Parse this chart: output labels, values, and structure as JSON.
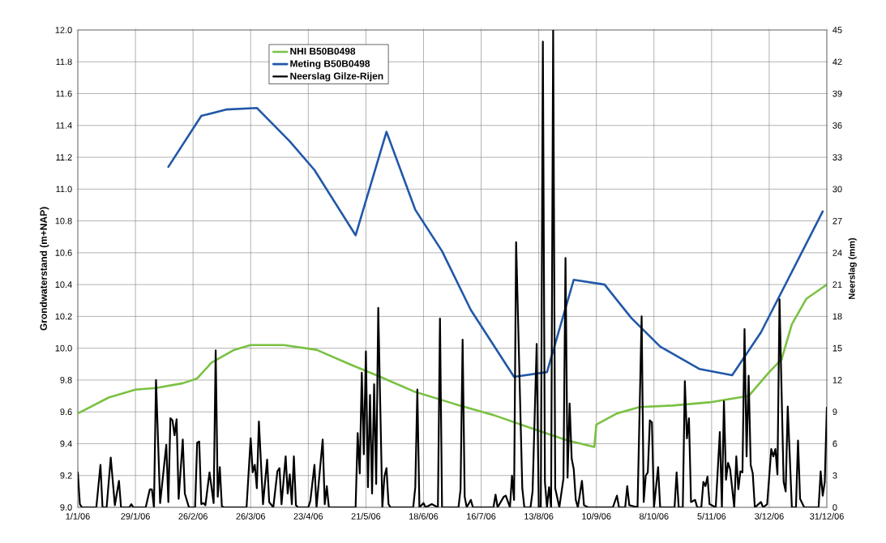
{
  "chart_data": {
    "type": "line",
    "ylabel": "Grondwaterstand (m+NAP)",
    "y2label": "Neerslag (mm)",
    "xlim": [
      "2006-01-01",
      "2006-12-31"
    ],
    "xticks": [
      {
        "value": "2006-01-01",
        "label": "1/1/06"
      },
      {
        "value": "2006-01-29",
        "label": "29/1/06"
      },
      {
        "value": "2006-02-26",
        "label": "26/2/06"
      },
      {
        "value": "2006-03-26",
        "label": "26/3/06"
      },
      {
        "value": "2006-04-23",
        "label": "23/4/06"
      },
      {
        "value": "2006-05-21",
        "label": "21/5/06"
      },
      {
        "value": "2006-06-18",
        "label": "18/6/06"
      },
      {
        "value": "2006-07-16",
        "label": "16/7/06"
      },
      {
        "value": "2006-08-13",
        "label": "13/8/06"
      },
      {
        "value": "2006-09-10",
        "label": "10/9/06"
      },
      {
        "value": "2006-10-08",
        "label": "8/10/06"
      },
      {
        "value": "2006-11-05",
        "label": "5/11/06"
      },
      {
        "value": "2006-12-03",
        "label": "3/12/06"
      },
      {
        "value": "2006-12-31",
        "label": "31/12/06"
      }
    ],
    "ylim": [
      9.0,
      12.0
    ],
    "yticks": [
      {
        "value": 9.0,
        "label": "9.0"
      },
      9.2,
      9.4,
      9.6,
      9.8,
      {
        "value": 10.0,
        "label": "10.0"
      },
      10.2,
      10.4,
      10.6,
      10.8,
      {
        "value": 11.0,
        "label": "11.0"
      },
      11.2,
      11.4,
      11.6,
      11.8,
      {
        "value": 12.0,
        "label": "12.0"
      }
    ],
    "y2lim": [
      0,
      45
    ],
    "y2ticks": [
      0,
      3,
      6,
      9,
      12,
      15,
      18,
      21,
      24,
      27,
      30,
      33,
      36,
      39,
      42,
      45
    ],
    "grid": true,
    "legend": "top",
    "series": [
      {
        "name": "NHI B50B0498",
        "color": "#7ac143",
        "x": [
          "2006-01-01",
          "2006-01-16",
          "2006-01-29",
          "2006-02-08",
          "2006-02-21",
          "2006-02-28",
          "2006-03-07",
          "2006-03-18",
          "2006-03-26",
          "2006-04-11",
          "2006-04-27",
          "2006-05-13",
          "2006-05-28",
          "2006-06-13",
          "2006-07-03",
          "2006-07-22",
          "2006-08-11",
          "2006-08-27",
          "2006-09-09",
          "2006-09-10",
          "2006-09-20",
          "2006-10-01",
          "2006-10-17",
          "2006-11-04",
          "2006-11-23",
          "2006-12-03",
          "2006-12-09",
          "2006-12-14",
          "2006-12-21",
          "2006-12-31"
        ],
        "values": [
          9.59,
          9.69,
          9.74,
          9.75,
          9.78,
          9.81,
          9.91,
          9.99,
          10.02,
          10.02,
          9.99,
          9.9,
          9.82,
          9.73,
          9.65,
          9.58,
          9.49,
          9.42,
          9.38,
          9.52,
          9.59,
          9.63,
          9.64,
          9.66,
          9.7,
          9.85,
          9.93,
          10.15,
          10.31,
          10.4
        ]
      },
      {
        "name": "Meting B50B0498",
        "color": "#2158a8",
        "x": [
          "2006-02-14",
          "2006-03-02",
          "2006-03-14",
          "2006-03-29",
          "2006-04-14",
          "2006-04-26",
          "2006-05-16",
          "2006-05-31",
          "2006-06-14",
          "2006-06-27",
          "2006-07-11",
          "2006-08-01",
          "2006-08-17",
          "2006-08-30",
          "2006-09-14",
          "2006-09-27",
          "2006-10-11",
          "2006-10-30",
          "2006-11-15",
          "2006-11-29",
          "2006-12-29"
        ],
        "values": [
          11.14,
          11.46,
          11.5,
          11.51,
          11.3,
          11.12,
          10.71,
          11.36,
          10.87,
          10.61,
          10.24,
          9.82,
          9.85,
          10.43,
          10.4,
          10.19,
          10.01,
          9.87,
          9.83,
          10.1,
          10.86
        ]
      },
      {
        "name": "Neerslag Gilze-Rijen",
        "color": "#000000",
        "axis": "y2",
        "x": [
          "2006-01-01",
          "2006-01-02",
          "2006-01-03",
          "2006-01-10",
          "2006-01-12",
          "2006-01-13",
          "2006-01-15",
          "2006-01-17",
          "2006-01-19",
          "2006-01-21",
          "2006-01-22",
          "2006-01-26",
          "2006-01-27",
          "2006-01-28",
          "2006-02-03",
          "2006-02-05",
          "2006-02-06",
          "2006-02-07",
          "2006-02-08",
          "2006-02-10",
          "2006-02-13",
          "2006-02-14",
          "2006-02-15",
          "2006-02-16",
          "2006-02-17",
          "2006-02-18",
          "2006-02-19",
          "2006-02-21",
          "2006-02-22",
          "2006-02-24",
          "2006-02-27",
          "2006-02-28",
          "2006-03-01",
          "2006-03-02",
          "2006-03-03",
          "2006-03-04",
          "2006-03-06",
          "2006-03-08",
          "2006-03-09",
          "2006-03-10",
          "2006-03-11",
          "2006-03-12",
          "2006-03-13",
          "2006-03-24",
          "2006-03-26",
          "2006-03-27",
          "2006-03-28",
          "2006-03-29",
          "2006-03-30",
          "2006-04-01",
          "2006-04-03",
          "2006-04-04",
          "2006-04-06",
          "2006-04-08",
          "2006-04-09",
          "2006-04-10",
          "2006-04-12",
          "2006-04-13",
          "2006-04-14",
          "2006-04-15",
          "2006-04-16",
          "2006-04-17",
          "2006-04-18",
          "2006-04-23",
          "2006-04-24",
          "2006-04-26",
          "2006-04-27",
          "2006-04-30",
          "2006-05-01",
          "2006-05-02",
          "2006-05-03",
          "2006-05-16",
          "2006-05-17",
          "2006-05-18",
          "2006-05-19",
          "2006-05-20",
          "2006-05-21",
          "2006-05-22",
          "2006-05-23",
          "2006-05-24",
          "2006-05-25",
          "2006-05-26",
          "2006-05-27",
          "2006-05-29",
          "2006-05-30",
          "2006-05-31",
          "2006-06-01",
          "2006-06-02",
          "2006-06-13",
          "2006-06-14",
          "2006-06-15",
          "2006-06-16",
          "2006-06-18",
          "2006-06-19",
          "2006-06-22",
          "2006-06-25",
          "2006-06-26",
          "2006-06-27",
          "2006-07-05",
          "2006-07-06",
          "2006-07-07",
          "2006-07-08",
          "2006-07-09",
          "2006-07-11",
          "2006-07-12",
          "2006-07-22",
          "2006-07-23",
          "2006-07-24",
          "2006-07-27",
          "2006-07-28",
          "2006-07-30",
          "2006-07-31",
          "2006-08-01",
          "2006-08-02",
          "2006-08-05",
          "2006-08-06",
          "2006-08-09",
          "2006-08-10",
          "2006-08-12",
          "2006-08-13",
          "2006-08-14",
          "2006-08-15",
          "2006-08-16",
          "2006-08-17",
          "2006-08-18",
          "2006-08-19",
          "2006-08-20",
          "2006-08-21",
          "2006-08-23",
          "2006-08-25",
          "2006-08-26",
          "2006-08-27",
          "2006-08-28",
          "2006-08-29",
          "2006-08-30",
          "2006-08-31",
          "2006-09-01",
          "2006-09-03",
          "2006-09-04",
          "2006-09-06",
          "2006-09-18",
          "2006-09-20",
          "2006-09-21",
          "2006-09-24",
          "2006-09-25",
          "2006-09-26",
          "2006-09-30",
          "2006-10-02",
          "2006-10-03",
          "2006-10-04",
          "2006-10-05",
          "2006-10-06",
          "2006-10-07",
          "2006-10-08",
          "2006-10-10",
          "2006-10-11",
          "2006-10-18",
          "2006-10-19",
          "2006-10-20",
          "2006-10-22",
          "2006-10-23",
          "2006-10-24",
          "2006-10-25",
          "2006-10-26",
          "2006-10-28",
          "2006-10-29",
          "2006-10-31",
          "2006-11-01",
          "2006-11-02",
          "2006-11-03",
          "2006-11-04",
          "2006-11-07",
          "2006-11-09",
          "2006-11-10",
          "2006-11-11",
          "2006-11-12",
          "2006-11-13",
          "2006-11-14",
          "2006-11-16",
          "2006-11-17",
          "2006-11-18",
          "2006-11-19",
          "2006-11-20",
          "2006-11-21",
          "2006-11-22",
          "2006-11-23",
          "2006-11-24",
          "2006-11-25",
          "2006-11-26",
          "2006-11-29",
          "2006-11-30",
          "2006-12-02",
          "2006-12-04",
          "2006-12-05",
          "2006-12-06",
          "2006-12-07",
          "2006-12-08",
          "2006-12-10",
          "2006-12-11",
          "2006-12-12",
          "2006-12-14",
          "2006-12-16",
          "2006-12-17",
          "2006-12-18",
          "2006-12-20",
          "2006-12-27",
          "2006-12-28",
          "2006-12-29",
          "2006-12-30",
          "2006-12-31"
        ],
        "values": [
          3.3,
          0.3,
          0,
          0,
          4.0,
          0,
          0,
          4.7,
          0.2,
          2.5,
          0,
          0,
          0.3,
          0,
          0,
          1.7,
          1.7,
          0,
          12.0,
          0.4,
          5.9,
          0.5,
          8.4,
          8.2,
          6.8,
          8.3,
          0.8,
          6.4,
          1.3,
          0,
          0,
          6.1,
          6.2,
          0.3,
          0.4,
          0.2,
          3.3,
          0.4,
          14.8,
          1.0,
          3.8,
          0.1,
          0,
          0,
          6.5,
          3.3,
          4.0,
          1.8,
          8.1,
          0.3,
          4.5,
          0.5,
          0,
          3.4,
          3.7,
          0.3,
          4.8,
          1.3,
          3.1,
          0.3,
          4.8,
          0.2,
          0,
          0,
          0.6,
          4.0,
          0,
          6.4,
          0.3,
          2.0,
          0,
          0,
          7.0,
          3.2,
          12.7,
          5.0,
          14.7,
          1.9,
          10.6,
          1.3,
          11.6,
          2.2,
          18.8,
          0,
          2.9,
          3.7,
          0.3,
          0,
          0,
          1.9,
          11.1,
          0,
          0.4,
          0,
          0.3,
          0,
          17.8,
          0,
          0,
          1.7,
          15.8,
          1.0,
          0,
          0.7,
          0,
          0,
          1.2,
          0,
          1.0,
          1.1,
          0,
          3.0,
          0.7,
          25.0,
          1.8,
          0,
          0,
          1.5,
          15.4,
          0,
          0,
          43.9,
          2.4,
          0,
          1.9,
          0,
          45,
          1.8,
          0,
          2.7,
          23.5,
          2.8,
          9.8,
          4.6,
          3.6,
          0.7,
          0,
          2.5,
          0.2,
          0,
          0,
          1.1,
          0,
          0,
          2.0,
          0.2,
          0,
          18.0,
          0.5,
          3.0,
          3.3,
          8.2,
          8.0,
          0,
          3.8,
          0,
          0,
          3.3,
          0,
          0,
          11.9,
          6.5,
          8.4,
          0.5,
          0.7,
          0,
          0,
          2.4,
          2.0,
          2.9,
          0.3,
          0,
          7.1,
          0,
          10.0,
          2.6,
          4.2,
          3.6,
          0,
          4.8,
          1.7,
          3.4,
          3.3,
          16.8,
          4.8,
          12.4,
          4.0,
          3.2,
          0,
          0.5,
          0,
          0.3,
          5.5,
          4.8,
          5.5,
          3.1,
          19.6,
          2.4,
          1.5,
          9.5,
          0,
          0,
          6.3,
          0.8,
          0,
          0,
          3.4,
          1.1,
          2.4,
          9.4
        ]
      }
    ]
  }
}
